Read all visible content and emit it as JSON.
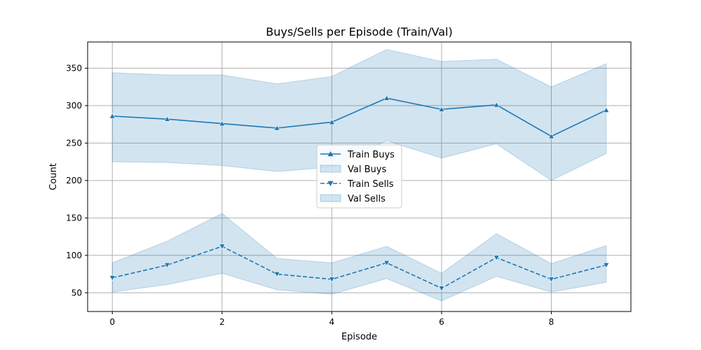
{
  "chart_data": {
    "type": "line",
    "title": "Buys/Sells per Episode (Train/Val)",
    "xlabel": "Episode",
    "ylabel": "Count",
    "xlim": [
      -0.45,
      9.45
    ],
    "ylim": [
      25,
      385
    ],
    "xticks": [
      0,
      2,
      4,
      6,
      8
    ],
    "yticks": [
      50,
      100,
      150,
      200,
      250,
      300,
      350
    ],
    "grid": true,
    "legend_position": "center",
    "x": [
      0,
      1,
      2,
      3,
      4,
      5,
      6,
      7,
      8,
      9
    ],
    "series": [
      {
        "name": "Train Buys",
        "values": [
          286,
          282,
          276,
          270,
          278,
          310,
          295,
          301,
          259,
          294
        ],
        "marker": "triangle-up",
        "linestyle": "solid",
        "color": "#1f77b4"
      },
      {
        "name": "Train Sells",
        "values": [
          70,
          87,
          112,
          75,
          68,
          90,
          56,
          97,
          68,
          87
        ],
        "marker": "triangle-down",
        "linestyle": "dashed",
        "color": "#1f77b4"
      }
    ],
    "bands": [
      {
        "name": "Val Buys",
        "upper": [
          344,
          341,
          341,
          329,
          339,
          375,
          359,
          362,
          325,
          356
        ],
        "lower": [
          225,
          224,
          220,
          212,
          218,
          253,
          230,
          249,
          200,
          236
        ],
        "color": "#1f77b4",
        "opacity": 0.2
      },
      {
        "name": "Val Sells",
        "upper": [
          90,
          119,
          156,
          96,
          90,
          112,
          76,
          129,
          89,
          113
        ],
        "lower": [
          51,
          61,
          76,
          54,
          48,
          69,
          39,
          72,
          51,
          64
        ],
        "color": "#1f77b4",
        "opacity": 0.2
      }
    ],
    "legend": [
      "Train Buys",
      "Val Buys",
      "Train Sells",
      "Val Sells"
    ]
  }
}
